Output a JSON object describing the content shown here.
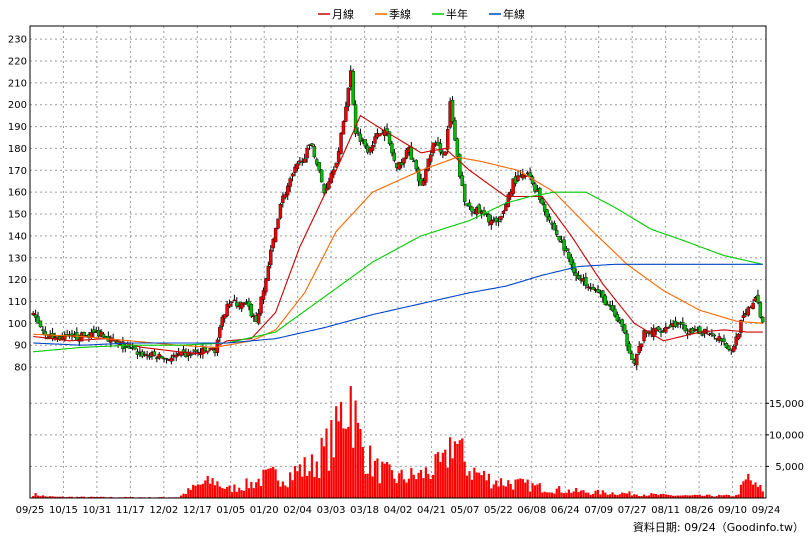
{
  "legend": [
    {
      "label": "月線",
      "color": "#cc0000"
    },
    {
      "label": "季線",
      "color": "#ff6600"
    },
    {
      "label": "半年",
      "color": "#00cc00"
    },
    {
      "label": "年線",
      "color": "#0044cc"
    }
  ],
  "footnote": "資料日期: 09/24（Goodinfo.tw）",
  "chart_data": {
    "type": "candlestick",
    "price_axis": {
      "ticks": [
        80,
        90,
        100,
        110,
        120,
        130,
        140,
        150,
        160,
        170,
        180,
        190,
        200,
        210,
        220,
        230
      ],
      "ylim": [
        75,
        236
      ]
    },
    "volume_axis": {
      "ticks": [
        5000,
        10000,
        15000
      ],
      "tick_labels": [
        "5,000",
        "10,000",
        "15,000"
      ],
      "ylim": [
        0,
        19000
      ]
    },
    "x_tick_labels": [
      "09/25",
      "10/15",
      "10/31",
      "11/17",
      "12/02",
      "12/17",
      "01/05",
      "01/20",
      "02/04",
      "03/03",
      "03/18",
      "04/02",
      "04/21",
      "05/07",
      "05/22",
      "06/08",
      "06/24",
      "07/09",
      "07/27",
      "08/11",
      "08/26",
      "09/10",
      "09/24"
    ],
    "price_keypoints": [
      [
        0,
        104
      ],
      [
        6,
        94
      ],
      [
        15,
        93
      ],
      [
        28,
        96
      ],
      [
        35,
        90
      ],
      [
        45,
        86
      ],
      [
        55,
        84
      ],
      [
        65,
        86
      ],
      [
        75,
        88
      ],
      [
        80,
        110
      ],
      [
        88,
        108
      ],
      [
        92,
        101
      ],
      [
        95,
        115
      ],
      [
        102,
        155
      ],
      [
        108,
        170
      ],
      [
        115,
        182
      ],
      [
        120,
        160
      ],
      [
        126,
        178
      ],
      [
        131,
        215
      ],
      [
        133,
        188
      ],
      [
        138,
        180
      ],
      [
        145,
        190
      ],
      [
        150,
        170
      ],
      [
        155,
        180
      ],
      [
        160,
        162
      ],
      [
        165,
        182
      ],
      [
        170,
        178
      ],
      [
        172,
        200
      ],
      [
        175,
        175
      ],
      [
        178,
        155
      ],
      [
        185,
        150
      ],
      [
        192,
        145
      ],
      [
        198,
        165
      ],
      [
        204,
        168
      ],
      [
        208,
        160
      ],
      [
        214,
        145
      ],
      [
        220,
        132
      ],
      [
        225,
        120
      ],
      [
        230,
        118
      ],
      [
        236,
        110
      ],
      [
        242,
        100
      ],
      [
        248,
        82
      ],
      [
        252,
        95
      ],
      [
        258,
        97
      ],
      [
        265,
        100
      ],
      [
        272,
        95
      ],
      [
        278,
        97
      ],
      [
        284,
        93
      ],
      [
        288,
        87
      ],
      [
        292,
        100
      ],
      [
        298,
        112
      ],
      [
        301,
        100
      ]
    ],
    "ma_series": {
      "月線": [
        [
          0,
          94
        ],
        [
          15,
          92
        ],
        [
          30,
          93
        ],
        [
          45,
          89
        ],
        [
          60,
          87
        ],
        [
          70,
          86
        ],
        [
          80,
          92
        ],
        [
          90,
          93
        ],
        [
          100,
          105
        ],
        [
          110,
          135
        ],
        [
          125,
          170
        ],
        [
          135,
          195
        ],
        [
          145,
          188
        ],
        [
          160,
          178
        ],
        [
          170,
          180
        ],
        [
          180,
          170
        ],
        [
          195,
          158
        ],
        [
          210,
          158
        ],
        [
          222,
          140
        ],
        [
          235,
          118
        ],
        [
          248,
          100
        ],
        [
          260,
          92
        ],
        [
          275,
          96
        ],
        [
          285,
          97
        ],
        [
          295,
          96
        ],
        [
          301,
          96
        ]
      ],
      "季線": [
        [
          0,
          95
        ],
        [
          20,
          94
        ],
        [
          40,
          92
        ],
        [
          60,
          90
        ],
        [
          75,
          89
        ],
        [
          90,
          92
        ],
        [
          100,
          97
        ],
        [
          112,
          114
        ],
        [
          125,
          142
        ],
        [
          140,
          160
        ],
        [
          160,
          170
        ],
        [
          175,
          176
        ],
        [
          185,
          174
        ],
        [
          200,
          170
        ],
        [
          215,
          160
        ],
        [
          230,
          143
        ],
        [
          245,
          127
        ],
        [
          260,
          115
        ],
        [
          275,
          106
        ],
        [
          290,
          101
        ],
        [
          301,
          100
        ]
      ],
      "半年": [
        [
          0,
          87
        ],
        [
          20,
          89
        ],
        [
          40,
          90
        ],
        [
          60,
          90
        ],
        [
          80,
          91
        ],
        [
          100,
          96
        ],
        [
          120,
          112
        ],
        [
          140,
          128
        ],
        [
          160,
          140
        ],
        [
          180,
          147
        ],
        [
          195,
          155
        ],
        [
          205,
          158
        ],
        [
          215,
          160
        ],
        [
          228,
          160
        ],
        [
          240,
          153
        ],
        [
          255,
          143
        ],
        [
          268,
          138
        ],
        [
          285,
          131
        ],
        [
          301,
          127
        ]
      ],
      "年線": [
        [
          0,
          91
        ],
        [
          20,
          90
        ],
        [
          40,
          91
        ],
        [
          60,
          91
        ],
        [
          80,
          91
        ],
        [
          100,
          93
        ],
        [
          120,
          98
        ],
        [
          140,
          104
        ],
        [
          160,
          109
        ],
        [
          180,
          114
        ],
        [
          195,
          117
        ],
        [
          210,
          122
        ],
        [
          225,
          126
        ],
        [
          240,
          127
        ],
        [
          260,
          127
        ],
        [
          280,
          127
        ],
        [
          301,
          127
        ]
      ]
    },
    "volume_keypoints": [
      [
        0,
        700
      ],
      [
        5,
        300
      ],
      [
        10,
        200
      ],
      [
        20,
        180
      ],
      [
        30,
        150
      ],
      [
        40,
        130
      ],
      [
        50,
        120
      ],
      [
        60,
        150
      ],
      [
        65,
        1500
      ],
      [
        70,
        2500
      ],
      [
        75,
        3000
      ],
      [
        80,
        1500
      ],
      [
        85,
        2000
      ],
      [
        90,
        2500
      ],
      [
        95,
        3500
      ],
      [
        100,
        4000
      ],
      [
        105,
        3800
      ],
      [
        110,
        5000
      ],
      [
        115,
        5500
      ],
      [
        120,
        8000
      ],
      [
        125,
        11000
      ],
      [
        128,
        16000
      ],
      [
        131,
        18500
      ],
      [
        134,
        11000
      ],
      [
        138,
        7000
      ],
      [
        142,
        5000
      ],
      [
        150,
        3500
      ],
      [
        160,
        4000
      ],
      [
        170,
        6000
      ],
      [
        173,
        11000
      ],
      [
        176,
        8000
      ],
      [
        180,
        5000
      ],
      [
        190,
        3000
      ],
      [
        200,
        2500
      ],
      [
        210,
        1800
      ],
      [
        220,
        1300
      ],
      [
        230,
        1000
      ],
      [
        240,
        900
      ],
      [
        250,
        700
      ],
      [
        260,
        500
      ],
      [
        270,
        400
      ],
      [
        280,
        400
      ],
      [
        290,
        400
      ],
      [
        295,
        3500
      ],
      [
        298,
        2000
      ],
      [
        301,
        1500
      ]
    ]
  }
}
